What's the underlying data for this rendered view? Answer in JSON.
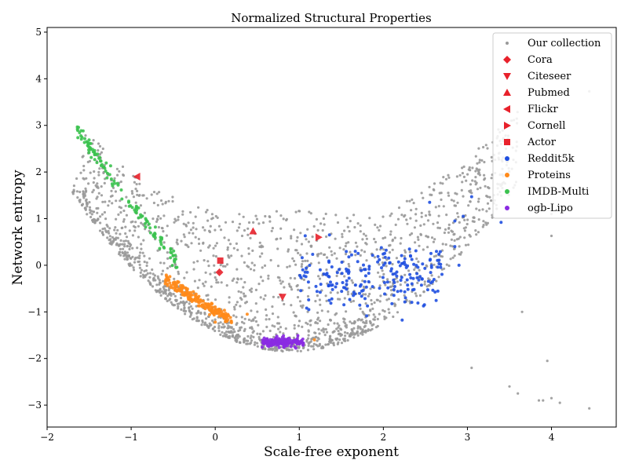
{
  "chart_data": {
    "type": "scatter",
    "title": "Normalized Structural Properties",
    "xlabel": "Scale-free exponent",
    "ylabel": "Network entropy",
    "xlim": [
      -2.0,
      4.77
    ],
    "ylim": [
      -3.47,
      5.1
    ],
    "xticks": [
      -2,
      -1,
      0,
      1,
      2,
      3,
      4
    ],
    "yticks": [
      -3,
      -2,
      -1,
      0,
      1,
      2,
      3,
      4,
      5
    ],
    "xtick_labels": [
      "−2",
      "−1",
      "0",
      "1",
      "2",
      "3",
      "4"
    ],
    "ytick_labels": [
      "−3",
      "−2",
      "−1",
      "0",
      "1",
      "2",
      "3",
      "4",
      "5"
    ],
    "grid": false,
    "legend_position": "top-right",
    "colors": {
      "collection": "#999999",
      "benchmarks": "#e8212b",
      "reddit": "#1f4fe0",
      "proteins": "#ff8a1a",
      "imdb": "#3bc24f",
      "lipo": "#8a2be2"
    },
    "series": [
      {
        "name": "Our collection",
        "marker": "circle",
        "color": "#999999",
        "count": 1800,
        "description_region": "broad curved cloud"
      },
      {
        "name": "Cora",
        "marker": "diamond",
        "color": "#e8212b",
        "points": [
          [
            0.05,
            -0.15
          ]
        ]
      },
      {
        "name": "Citeseer",
        "marker": "triangle-down",
        "color": "#e8212b",
        "points": [
          [
            0.8,
            -0.68
          ]
        ]
      },
      {
        "name": "Pubmed",
        "marker": "triangle-up",
        "color": "#e8212b",
        "points": [
          [
            0.45,
            0.73
          ]
        ]
      },
      {
        "name": "Flickr",
        "marker": "triangle-left",
        "color": "#e8212b",
        "points": [
          [
            -0.93,
            1.9
          ]
        ]
      },
      {
        "name": "Cornell",
        "marker": "triangle-right",
        "color": "#e8212b",
        "points": [
          [
            1.23,
            0.6
          ]
        ]
      },
      {
        "name": "Actor",
        "marker": "square",
        "color": "#e8212b",
        "points": [
          [
            0.06,
            0.1
          ]
        ]
      },
      {
        "name": "Reddit5k",
        "marker": "circle",
        "color": "#1f4fe0",
        "count": 200,
        "center": [
          2.1,
          -0.2
        ]
      },
      {
        "name": "Proteins",
        "marker": "circle",
        "color": "#ff8a1a",
        "count": 180,
        "x_range": [
          -0.6,
          0.45
        ]
      },
      {
        "name": "IMDB-Multi",
        "marker": "circle",
        "color": "#3bc24f",
        "count": 120,
        "x_range": [
          -1.65,
          -0.45
        ]
      },
      {
        "name": "ogb-Lipo",
        "marker": "circle",
        "color": "#8a2be2",
        "count": 150,
        "center": [
          0.72,
          -1.65
        ]
      }
    ]
  }
}
